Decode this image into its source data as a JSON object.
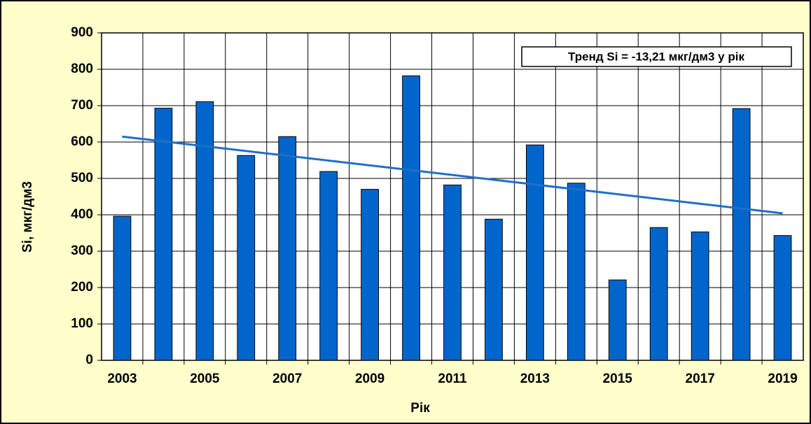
{
  "chart_data": {
    "type": "bar",
    "y_label": "Si, мкг/дм3",
    "x_label": "Рік",
    "annotation": "Тренд Si = -13,21 мкг/дм3 у рік",
    "categories": [
      "2003",
      null,
      "2005",
      null,
      "2007",
      null,
      "2009",
      null,
      "2011",
      null,
      "2013",
      null,
      "2015",
      null,
      "2017",
      null,
      "2019"
    ],
    "values": [
      396,
      693,
      711,
      563,
      615,
      519,
      470,
      782,
      482,
      388,
      592,
      487,
      221,
      365,
      353,
      692,
      343
    ],
    "color": "#0066cc",
    "trend_values": [
      615,
      404
    ],
    "trend_color": "#1f6fc8",
    "ylim": [
      0,
      900
    ],
    "yticks": [
      0,
      100,
      200,
      300,
      400,
      500,
      600,
      700,
      800,
      900
    ],
    "grid": true
  }
}
